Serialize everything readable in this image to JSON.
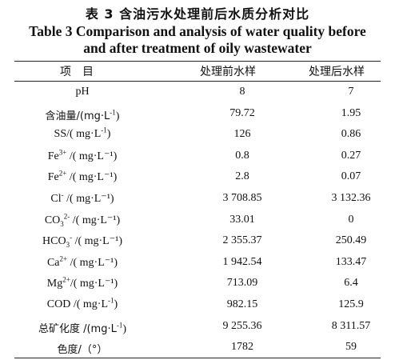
{
  "title_cn": "表 3   含油污水处理前后水质分析对比",
  "title_en_line1": "Table 3 Comparison and analysis of water quality before",
  "title_en_line2": "and after treatment of oily wastewater",
  "headers": {
    "item": "项目",
    "before": "处理前水样",
    "after": "处理后水样"
  },
  "rows": [
    {
      "label_pre": "pH",
      "sup": "",
      "sub": "",
      "label_post": "",
      "before": "8",
      "after": "7"
    },
    {
      "label_pre": "含油量/(mg·L",
      "sup": "-1",
      "sub": "",
      "label_post": ")",
      "before": "79.72",
      "after": "1.95"
    },
    {
      "label_pre": "SS/( mg·L",
      "sup": "-1",
      "sub": "",
      "label_post": ")",
      "before": "126",
      "after": "0.86"
    },
    {
      "label_pre": "Fe",
      "sup": "3+",
      "sub": "",
      "label_post": " /( mg·L⁻¹)",
      "before": "0.8",
      "after": "0.27"
    },
    {
      "label_pre": "Fe",
      "sup": "2+",
      "sub": "",
      "label_post": " /( mg·L⁻¹)",
      "before": "2.8",
      "after": "0.07"
    },
    {
      "label_pre": "Cl",
      "sup": "-",
      "sub": "",
      "label_post": " /( mg·L⁻¹)",
      "before": "3 708.85",
      "after": "3 132.36"
    },
    {
      "label_pre": "CO",
      "sup": "2-",
      "sub": "3",
      "label_post": " /( mg·L⁻¹)",
      "before": "33.01",
      "after": "0"
    },
    {
      "label_pre": "HCO",
      "sup": "-",
      "sub": "3",
      "label_post": " /( mg·L⁻¹)",
      "before": "2 355.37",
      "after": "250.49"
    },
    {
      "label_pre": "Ca",
      "sup": "2+",
      "sub": "",
      "label_post": " /( mg·L⁻¹)",
      "before": "1 942.54",
      "after": "133.47"
    },
    {
      "label_pre": "Mg",
      "sup": "2+",
      "sub": "",
      "label_post": "/( mg·L⁻¹)",
      "before": "713.09",
      "after": "6.4"
    },
    {
      "label_pre": "COD /( mg·L",
      "sup": "-1",
      "sub": "",
      "label_post": ")",
      "before": "982.15",
      "after": "125.9"
    },
    {
      "label_pre": "总矿化度 /(mg·L",
      "sup": "-1",
      "sub": "",
      "label_post": ")",
      "before": "9 255.36",
      "after": "8 311.57"
    },
    {
      "label_pre": "色度/（°）",
      "sup": "",
      "sub": "",
      "label_post": "",
      "before": "1782",
      "after": "59"
    }
  ]
}
